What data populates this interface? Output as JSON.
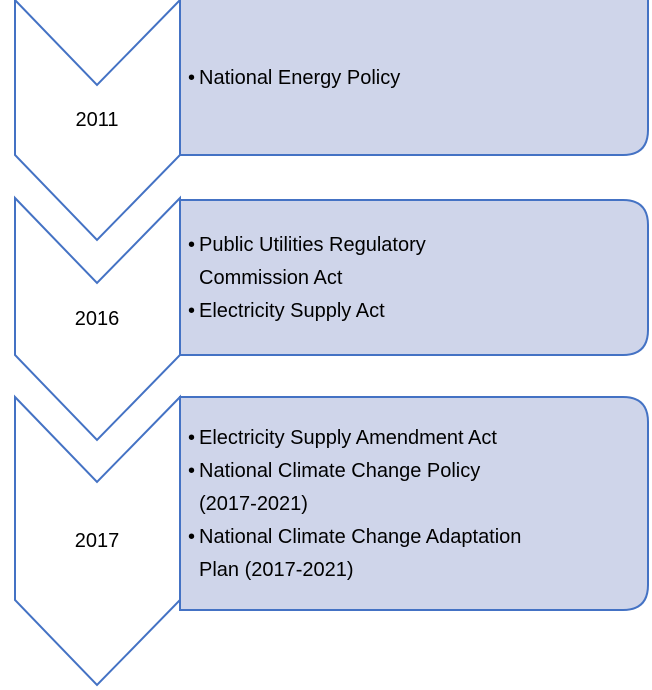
{
  "items": [
    {
      "year": "2011",
      "bullets": [
        [
          "National Energy Policy"
        ]
      ]
    },
    {
      "year": "2016",
      "bullets": [
        [
          "Public Utilities Regulatory",
          "Commission Act"
        ],
        [
          "Electricity Supply Act"
        ]
      ]
    },
    {
      "year": "2017",
      "bullets": [
        [
          "Electricity Supply Amendment Act"
        ],
        [
          "National Climate Change Policy",
          "(2017-2021)"
        ],
        [
          "National Climate Change Adaptation",
          "Plan (2017-2021)"
        ]
      ]
    }
  ]
}
